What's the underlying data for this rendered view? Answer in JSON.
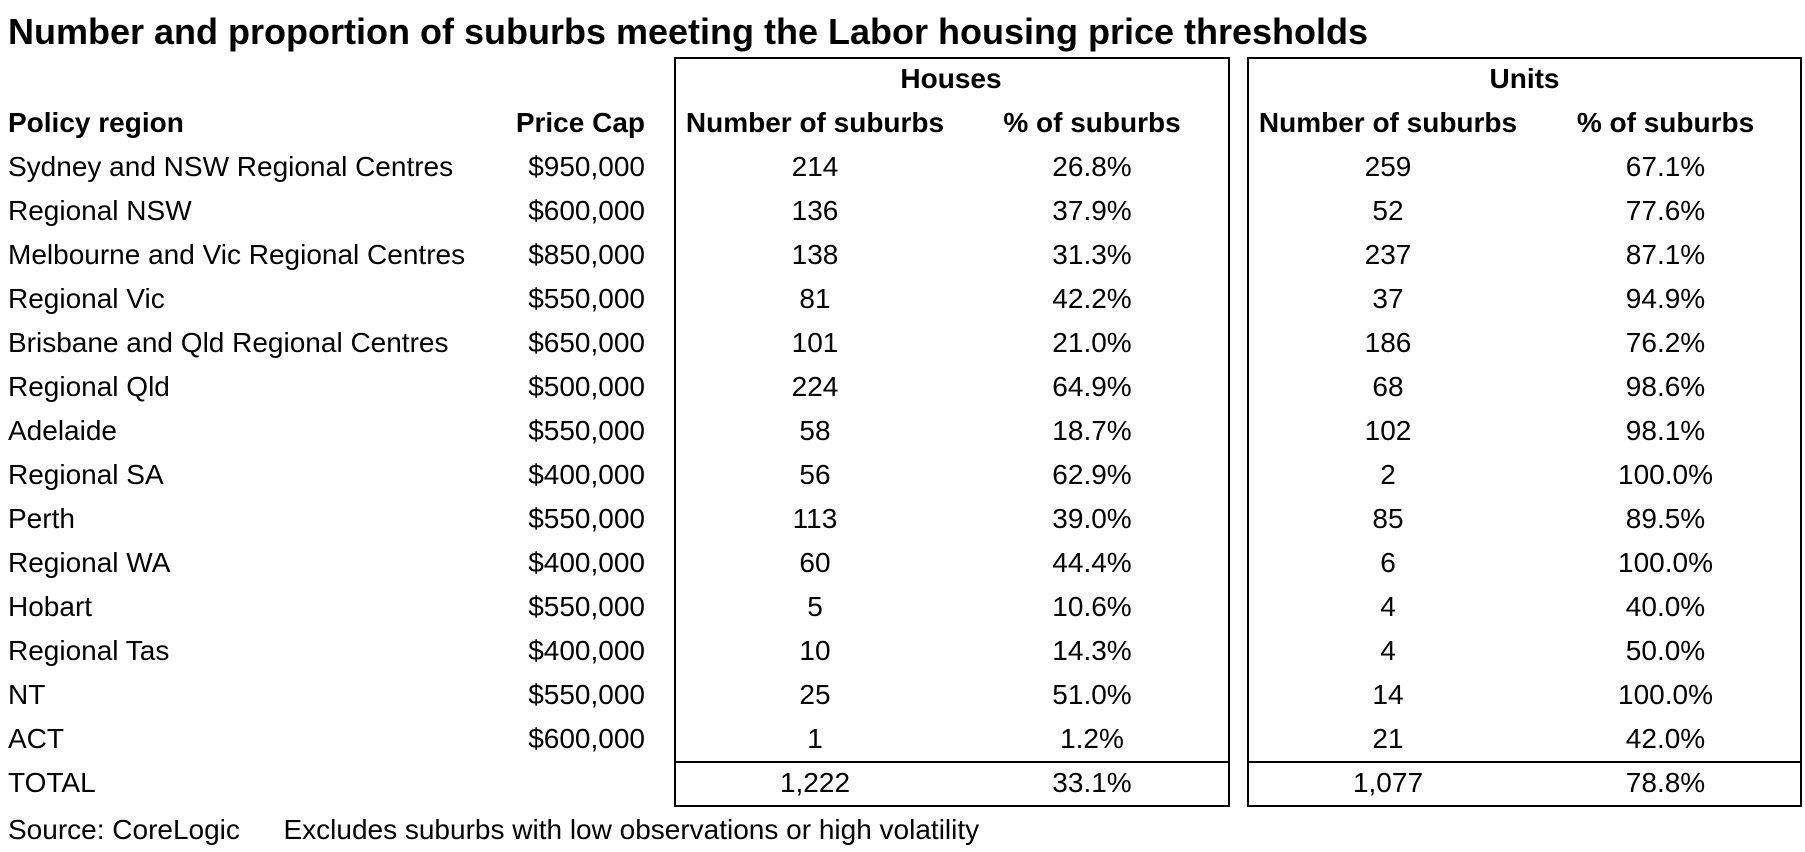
{
  "title": "Number and proportion of suburbs meeting the Labor housing price thresholds",
  "headers": {
    "policy_region": "Policy region",
    "price_cap": "Price Cap",
    "houses_group": "Houses",
    "units_group": "Units",
    "houses_number": "Number of suburbs",
    "houses_pct": "% of suburbs",
    "units_number": "Number of suburbs",
    "units_pct": "% of suburbs"
  },
  "rows": [
    {
      "region": "Sydney and NSW Regional Centres",
      "cap": "$950,000",
      "h_num": "214",
      "h_pct": "26.8%",
      "u_num": "259",
      "u_pct": "67.1%"
    },
    {
      "region": "Regional NSW",
      "cap": "$600,000",
      "h_num": "136",
      "h_pct": "37.9%",
      "u_num": "52",
      "u_pct": "77.6%"
    },
    {
      "region": "Melbourne and Vic Regional Centres",
      "cap": "$850,000",
      "h_num": "138",
      "h_pct": "31.3%",
      "u_num": "237",
      "u_pct": "87.1%"
    },
    {
      "region": "Regional Vic",
      "cap": "$550,000",
      "h_num": "81",
      "h_pct": "42.2%",
      "u_num": "37",
      "u_pct": "94.9%"
    },
    {
      "region": "Brisbane and Qld Regional Centres",
      "cap": "$650,000",
      "h_num": "101",
      "h_pct": "21.0%",
      "u_num": "186",
      "u_pct": "76.2%"
    },
    {
      "region": "Regional Qld",
      "cap": "$500,000",
      "h_num": "224",
      "h_pct": "64.9%",
      "u_num": "68",
      "u_pct": "98.6%"
    },
    {
      "region": "Adelaide",
      "cap": "$550,000",
      "h_num": "58",
      "h_pct": "18.7%",
      "u_num": "102",
      "u_pct": "98.1%"
    },
    {
      "region": "Regional SA",
      "cap": "$400,000",
      "h_num": "56",
      "h_pct": "62.9%",
      "u_num": "2",
      "u_pct": "100.0%"
    },
    {
      "region": "Perth",
      "cap": "$550,000",
      "h_num": "113",
      "h_pct": "39.0%",
      "u_num": "85",
      "u_pct": "89.5%"
    },
    {
      "region": "Regional WA",
      "cap": "$400,000",
      "h_num": "60",
      "h_pct": "44.4%",
      "u_num": "6",
      "u_pct": "100.0%"
    },
    {
      "region": "Hobart",
      "cap": "$550,000",
      "h_num": "5",
      "h_pct": "10.6%",
      "u_num": "4",
      "u_pct": "40.0%"
    },
    {
      "region": "Regional Tas",
      "cap": "$400,000",
      "h_num": "10",
      "h_pct": "14.3%",
      "u_num": "4",
      "u_pct": "50.0%"
    },
    {
      "region": "NT",
      "cap": "$550,000",
      "h_num": "25",
      "h_pct": "51.0%",
      "u_num": "14",
      "u_pct": "100.0%"
    },
    {
      "region": "ACT",
      "cap": "$600,000",
      "h_num": "1",
      "h_pct": "1.2%",
      "u_num": "21",
      "u_pct": "42.0%"
    }
  ],
  "total": {
    "label": "TOTAL",
    "cap": "",
    "h_num": "1,222",
    "h_pct": "33.1%",
    "u_num": "1,077",
    "u_pct": "78.8%"
  },
  "source": {
    "left": "Source:  CoreLogic",
    "right": "Excludes suburbs with low observations or high volatility"
  },
  "chart_data": {
    "type": "table",
    "title": "Number and proportion of suburbs meeting the Labor housing price thresholds",
    "columns": [
      "Policy region",
      "Price Cap",
      "Houses: Number of suburbs",
      "Houses: % of suburbs",
      "Units: Number of suburbs",
      "Units: % of suburbs"
    ],
    "rows": [
      [
        "Sydney and NSW Regional Centres",
        "$950,000",
        214,
        "26.8%",
        259,
        "67.1%"
      ],
      [
        "Regional NSW",
        "$600,000",
        136,
        "37.9%",
        52,
        "77.6%"
      ],
      [
        "Melbourne and Vic Regional Centres",
        "$850,000",
        138,
        "31.3%",
        237,
        "87.1%"
      ],
      [
        "Regional Vic",
        "$550,000",
        81,
        "42.2%",
        37,
        "94.9%"
      ],
      [
        "Brisbane and Qld Regional Centres",
        "$650,000",
        101,
        "21.0%",
        186,
        "76.2%"
      ],
      [
        "Regional Qld",
        "$500,000",
        224,
        "64.9%",
        68,
        "98.6%"
      ],
      [
        "Adelaide",
        "$550,000",
        58,
        "18.7%",
        102,
        "98.1%"
      ],
      [
        "Regional SA",
        "$400,000",
        56,
        "62.9%",
        2,
        "100.0%"
      ],
      [
        "Perth",
        "$550,000",
        113,
        "39.0%",
        85,
        "89.5%"
      ],
      [
        "Regional WA",
        "$400,000",
        60,
        "44.4%",
        6,
        "100.0%"
      ],
      [
        "Hobart",
        "$550,000",
        5,
        "10.6%",
        4,
        "40.0%"
      ],
      [
        "Regional Tas",
        "$400,000",
        10,
        "14.3%",
        4,
        "50.0%"
      ],
      [
        "NT",
        "$550,000",
        25,
        "51.0%",
        14,
        "100.0%"
      ],
      [
        "ACT",
        "$600,000",
        1,
        "1.2%",
        21,
        "42.0%"
      ],
      [
        "TOTAL",
        "",
        "1,222",
        "33.1%",
        "1,077",
        "78.8%"
      ]
    ]
  }
}
